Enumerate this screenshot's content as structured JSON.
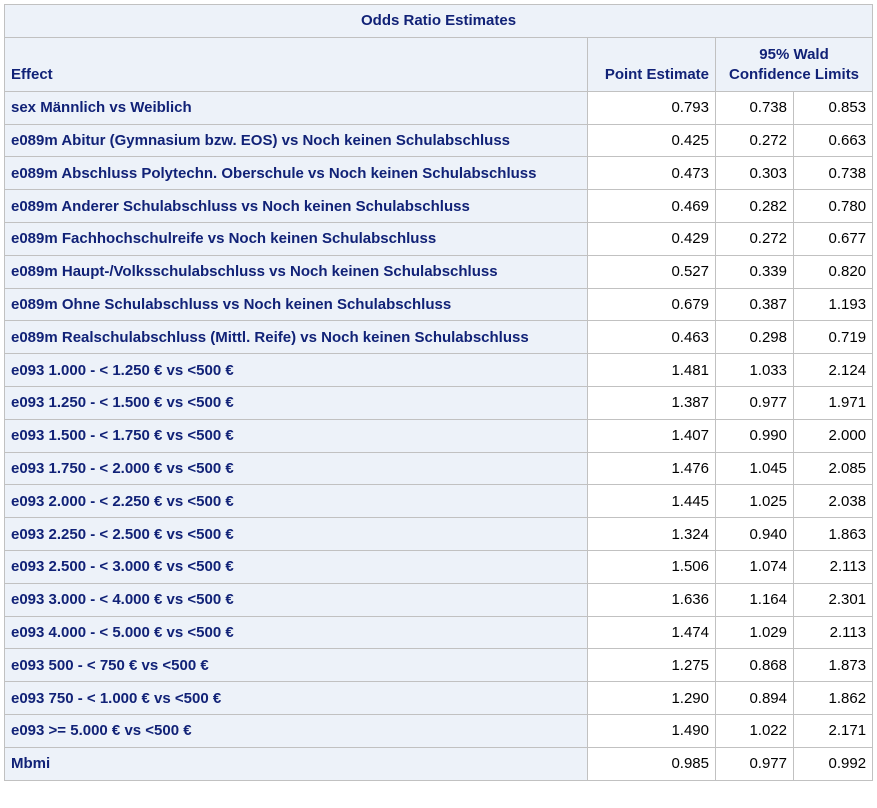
{
  "table": {
    "title": "Odds Ratio Estimates",
    "headers": {
      "effect": "Effect",
      "point_estimate": "Point Estimate",
      "ci_line1": "95% Wald",
      "ci_line2": "Confidence Limits"
    },
    "rows": [
      {
        "effect": "sex Männlich vs Weiblich",
        "point": "0.793",
        "lower": "0.738",
        "upper": "0.853"
      },
      {
        "effect": "e089m Abitur (Gymnasium bzw. EOS) vs Noch keinen Schulabschluss",
        "point": "0.425",
        "lower": "0.272",
        "upper": "0.663"
      },
      {
        "effect": "e089m Abschluss Polytechn. Oberschule vs Noch keinen Schulabschluss",
        "point": "0.473",
        "lower": "0.303",
        "upper": "0.738"
      },
      {
        "effect": "e089m Anderer Schulabschluss vs Noch keinen Schulabschluss",
        "point": "0.469",
        "lower": "0.282",
        "upper": "0.780"
      },
      {
        "effect": "e089m Fachhochschulreife vs Noch keinen Schulabschluss",
        "point": "0.429",
        "lower": "0.272",
        "upper": "0.677"
      },
      {
        "effect": "e089m Haupt-/Volksschulabschluss vs Noch keinen Schulabschluss",
        "point": "0.527",
        "lower": "0.339",
        "upper": "0.820"
      },
      {
        "effect": "e089m Ohne Schulabschluss vs Noch keinen Schulabschluss",
        "point": "0.679",
        "lower": "0.387",
        "upper": "1.193"
      },
      {
        "effect": "e089m Realschulabschluss (Mittl. Reife) vs Noch keinen Schulabschluss",
        "point": "0.463",
        "lower": "0.298",
        "upper": "0.719"
      },
      {
        "effect": "e093 1.000 - < 1.250 € vs <500 €",
        "point": "1.481",
        "lower": "1.033",
        "upper": "2.124"
      },
      {
        "effect": "e093 1.250 - < 1.500 € vs <500 €",
        "point": "1.387",
        "lower": "0.977",
        "upper": "1.971"
      },
      {
        "effect": "e093 1.500 - < 1.750 € vs <500 €",
        "point": "1.407",
        "lower": "0.990",
        "upper": "2.000"
      },
      {
        "effect": "e093 1.750 - < 2.000 € vs <500 €",
        "point": "1.476",
        "lower": "1.045",
        "upper": "2.085"
      },
      {
        "effect": "e093 2.000 - < 2.250 € vs <500 €",
        "point": "1.445",
        "lower": "1.025",
        "upper": "2.038"
      },
      {
        "effect": "e093 2.250 - < 2.500 € vs <500 €",
        "point": "1.324",
        "lower": "0.940",
        "upper": "1.863"
      },
      {
        "effect": "e093 2.500 - < 3.000 € vs <500 €",
        "point": "1.506",
        "lower": "1.074",
        "upper": "2.113"
      },
      {
        "effect": "e093 3.000 - < 4.000 € vs <500 €",
        "point": "1.636",
        "lower": "1.164",
        "upper": "2.301"
      },
      {
        "effect": "e093 4.000 - < 5.000 € vs <500 €",
        "point": "1.474",
        "lower": "1.029",
        "upper": "2.113"
      },
      {
        "effect": "e093 500 - < 750 € vs <500 €",
        "point": "1.275",
        "lower": "0.868",
        "upper": "1.873"
      },
      {
        "effect": "e093 750 - < 1.000 € vs <500 €",
        "point": "1.290",
        "lower": "0.894",
        "upper": "1.862"
      },
      {
        "effect": "e093 >= 5.000 € vs <500 €",
        "point": "1.490",
        "lower": "1.022",
        "upper": "2.171"
      },
      {
        "effect": "Mbmi",
        "point": "0.985",
        "lower": "0.977",
        "upper": "0.992"
      }
    ]
  }
}
